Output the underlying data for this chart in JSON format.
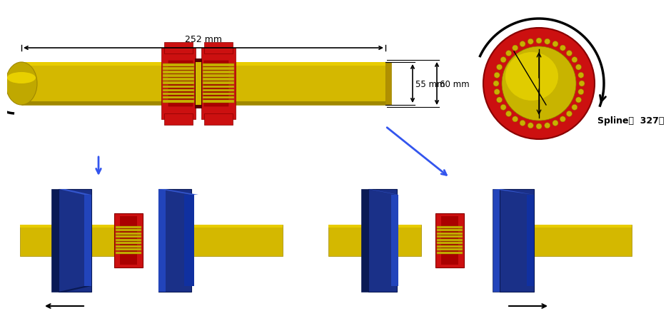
{
  "spline_text": "Spline이  327개",
  "dim_252": "252 mm",
  "dim_55": "55 mm",
  "dim_60": "60 mm",
  "yellow": "#D4B800",
  "yellow_dark": "#A08800",
  "yellow_mid": "#C8AC00",
  "red": "#CC1010",
  "red_dark": "#880000",
  "red_mid": "#AA0000",
  "blue": "#1A3088",
  "blue_light": "#2244BB",
  "blue_dark": "#0A1A55",
  "blue_side": "#3355CC",
  "black": "#000000",
  "bg": "#FFFFFF",
  "arrow_blue": "#3355EE",
  "spline_stripe": "#8A7800",
  "spline_yellow": "#C8B000"
}
